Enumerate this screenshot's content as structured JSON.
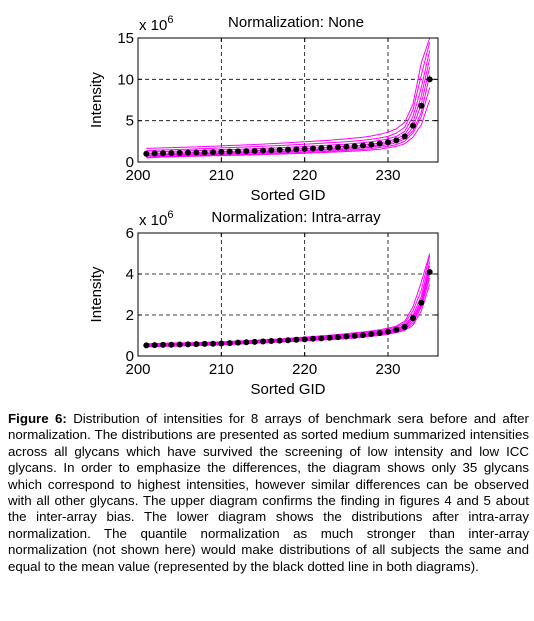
{
  "chart_data": [
    {
      "type": "line",
      "title": "Normalization: None",
      "xlabel": "Sorted GID",
      "ylabel": "Intensity",
      "y_multiplier": "x 10",
      "y_exponent": "6",
      "xlim": [
        200,
        236
      ],
      "ylim": [
        0,
        15
      ],
      "xticks": [
        "200",
        "210",
        "220",
        "230"
      ],
      "xtick_values": [
        200,
        210,
        220,
        230
      ],
      "yticks": [
        "0",
        "5",
        "10",
        "15"
      ],
      "ytick_values": [
        0,
        5,
        10,
        15
      ],
      "grid": true,
      "series_color": "#ff00ff",
      "mean_color": "#000000",
      "x": [
        201,
        202,
        203,
        204,
        205,
        206,
        207,
        208,
        209,
        210,
        211,
        212,
        213,
        214,
        215,
        216,
        217,
        218,
        219,
        220,
        221,
        222,
        223,
        224,
        225,
        226,
        227,
        228,
        229,
        230,
        231,
        232,
        233,
        234,
        235
      ],
      "series": [
        {
          "values": [
            0.5,
            0.55,
            0.6,
            0.62,
            0.65,
            0.68,
            0.7,
            0.72,
            0.75,
            0.78,
            0.8,
            0.82,
            0.85,
            0.88,
            0.9,
            0.93,
            0.96,
            1.0,
            1.03,
            1.06,
            1.1,
            1.14,
            1.18,
            1.22,
            1.27,
            1.32,
            1.38,
            1.45,
            1.55,
            1.7,
            1.9,
            2.2,
            3.0,
            4.5,
            7.5
          ]
        },
        {
          "values": [
            0.6,
            0.65,
            0.68,
            0.7,
            0.72,
            0.75,
            0.78,
            0.8,
            0.83,
            0.86,
            0.88,
            0.9,
            0.93,
            0.96,
            1.0,
            1.03,
            1.06,
            1.1,
            1.14,
            1.18,
            1.22,
            1.26,
            1.3,
            1.35,
            1.4,
            1.46,
            1.53,
            1.62,
            1.75,
            1.9,
            2.1,
            2.5,
            3.5,
            5.5,
            9.0
          ]
        },
        {
          "values": [
            0.75,
            0.78,
            0.8,
            0.82,
            0.85,
            0.88,
            0.9,
            0.92,
            0.95,
            0.98,
            1.0,
            1.03,
            1.06,
            1.1,
            1.13,
            1.16,
            1.2,
            1.24,
            1.28,
            1.32,
            1.36,
            1.4,
            1.45,
            1.5,
            1.56,
            1.62,
            1.7,
            1.8,
            1.95,
            2.1,
            2.35,
            2.8,
            3.8,
            6.0,
            10.5
          ]
        },
        {
          "values": [
            0.85,
            0.88,
            0.9,
            0.93,
            0.95,
            0.98,
            1.0,
            1.03,
            1.06,
            1.09,
            1.12,
            1.15,
            1.18,
            1.21,
            1.24,
            1.28,
            1.32,
            1.36,
            1.4,
            1.44,
            1.48,
            1.53,
            1.58,
            1.64,
            1.7,
            1.77,
            1.85,
            1.95,
            2.1,
            2.3,
            2.55,
            3.0,
            4.2,
            7.0,
            11.5
          ]
        },
        {
          "values": [
            1.0,
            1.03,
            1.06,
            1.08,
            1.1,
            1.13,
            1.16,
            1.19,
            1.22,
            1.25,
            1.28,
            1.31,
            1.34,
            1.38,
            1.42,
            1.46,
            1.5,
            1.54,
            1.58,
            1.62,
            1.67,
            1.72,
            1.78,
            1.84,
            1.9,
            1.97,
            2.05,
            2.15,
            2.3,
            2.5,
            2.8,
            3.3,
            4.8,
            8.0,
            12.5
          ]
        },
        {
          "values": [
            1.2,
            1.23,
            1.26,
            1.29,
            1.32,
            1.35,
            1.38,
            1.41,
            1.44,
            1.47,
            1.5,
            1.53,
            1.57,
            1.61,
            1.65,
            1.69,
            1.73,
            1.78,
            1.83,
            1.88,
            1.93,
            1.98,
            2.04,
            2.1,
            2.17,
            2.25,
            2.34,
            2.45,
            2.6,
            2.8,
            3.1,
            3.7,
            5.5,
            9.0,
            13.5
          ]
        },
        {
          "values": [
            1.4,
            1.43,
            1.46,
            1.49,
            1.52,
            1.55,
            1.58,
            1.62,
            1.66,
            1.7,
            1.74,
            1.78,
            1.82,
            1.86,
            1.9,
            1.95,
            2.0,
            2.05,
            2.1,
            2.15,
            2.2,
            2.26,
            2.32,
            2.39,
            2.46,
            2.54,
            2.63,
            2.75,
            2.9,
            3.1,
            3.5,
            4.2,
            6.3,
            10.5,
            14.5
          ]
        },
        {
          "values": [
            1.65,
            1.68,
            1.71,
            1.74,
            1.77,
            1.8,
            1.83,
            1.87,
            1.91,
            1.95,
            1.99,
            2.03,
            2.07,
            2.12,
            2.17,
            2.22,
            2.27,
            2.32,
            2.38,
            2.44,
            2.5,
            2.57,
            2.64,
            2.72,
            2.8,
            2.9,
            3.0,
            3.15,
            3.35,
            3.6,
            4.0,
            4.8,
            7.0,
            12.0,
            15.0
          ]
        }
      ],
      "mean": {
        "values": [
          1.0,
          1.04,
          1.06,
          1.08,
          1.1,
          1.13,
          1.15,
          1.17,
          1.2,
          1.23,
          1.26,
          1.29,
          1.32,
          1.35,
          1.39,
          1.42,
          1.46,
          1.5,
          1.54,
          1.58,
          1.63,
          1.68,
          1.73,
          1.78,
          1.84,
          1.91,
          1.99,
          2.09,
          2.22,
          2.38,
          2.62,
          3.1,
          4.4,
          6.8,
          10.0
        ]
      }
    },
    {
      "type": "line",
      "title": "Normalization: Intra-array",
      "xlabel": "Sorted GID",
      "ylabel": "Intensity",
      "y_multiplier": "x 10",
      "y_exponent": "6",
      "xlim": [
        200,
        236
      ],
      "ylim": [
        0,
        6
      ],
      "xticks": [
        "200",
        "210",
        "220",
        "230"
      ],
      "xtick_values": [
        200,
        210,
        220,
        230
      ],
      "yticks": [
        "0",
        "2",
        "4",
        "6"
      ],
      "ytick_values": [
        0,
        2,
        4,
        6
      ],
      "grid": true,
      "series_color": "#ff00ff",
      "mean_color": "#000000",
      "x": [
        201,
        202,
        203,
        204,
        205,
        206,
        207,
        208,
        209,
        210,
        211,
        212,
        213,
        214,
        215,
        216,
        217,
        218,
        219,
        220,
        221,
        222,
        223,
        224,
        225,
        226,
        227,
        228,
        229,
        230,
        231,
        232,
        233,
        234,
        235
      ],
      "series": [
        {
          "values": [
            0.45,
            0.46,
            0.47,
            0.48,
            0.49,
            0.5,
            0.51,
            0.52,
            0.53,
            0.54,
            0.56,
            0.58,
            0.6,
            0.62,
            0.64,
            0.66,
            0.68,
            0.7,
            0.72,
            0.74,
            0.76,
            0.78,
            0.8,
            0.82,
            0.85,
            0.88,
            0.92,
            0.96,
            1.0,
            1.06,
            1.14,
            1.25,
            1.5,
            2.2,
            3.5
          ]
        },
        {
          "values": [
            0.48,
            0.49,
            0.5,
            0.51,
            0.52,
            0.53,
            0.54,
            0.55,
            0.56,
            0.57,
            0.59,
            0.61,
            0.63,
            0.65,
            0.67,
            0.69,
            0.71,
            0.73,
            0.75,
            0.77,
            0.79,
            0.81,
            0.83,
            0.86,
            0.89,
            0.92,
            0.96,
            1.0,
            1.05,
            1.11,
            1.19,
            1.3,
            1.6,
            2.4,
            3.8
          ]
        },
        {
          "values": [
            0.5,
            0.51,
            0.52,
            0.53,
            0.54,
            0.55,
            0.56,
            0.57,
            0.58,
            0.59,
            0.61,
            0.63,
            0.65,
            0.67,
            0.69,
            0.71,
            0.73,
            0.75,
            0.77,
            0.79,
            0.81,
            0.83,
            0.86,
            0.89,
            0.92,
            0.95,
            0.99,
            1.03,
            1.08,
            1.15,
            1.23,
            1.35,
            1.7,
            2.5,
            4.0
          ]
        },
        {
          "values": [
            0.52,
            0.53,
            0.54,
            0.55,
            0.56,
            0.57,
            0.58,
            0.59,
            0.6,
            0.61,
            0.63,
            0.65,
            0.67,
            0.69,
            0.71,
            0.73,
            0.75,
            0.77,
            0.79,
            0.81,
            0.83,
            0.86,
            0.89,
            0.92,
            0.95,
            0.98,
            1.02,
            1.06,
            1.11,
            1.18,
            1.27,
            1.4,
            1.8,
            2.6,
            4.2
          ]
        },
        {
          "values": [
            0.53,
            0.54,
            0.55,
            0.56,
            0.57,
            0.58,
            0.59,
            0.6,
            0.61,
            0.62,
            0.64,
            0.66,
            0.68,
            0.7,
            0.72,
            0.74,
            0.76,
            0.78,
            0.8,
            0.82,
            0.85,
            0.88,
            0.91,
            0.94,
            0.97,
            1.0,
            1.04,
            1.09,
            1.14,
            1.21,
            1.3,
            1.45,
            1.9,
            2.7,
            4.4
          ]
        },
        {
          "values": [
            0.55,
            0.56,
            0.57,
            0.58,
            0.59,
            0.6,
            0.61,
            0.62,
            0.63,
            0.64,
            0.66,
            0.68,
            0.7,
            0.72,
            0.74,
            0.76,
            0.78,
            0.8,
            0.82,
            0.85,
            0.88,
            0.91,
            0.94,
            0.97,
            1.0,
            1.03,
            1.07,
            1.12,
            1.17,
            1.24,
            1.34,
            1.5,
            2.0,
            2.9,
            4.6
          ]
        },
        {
          "values": [
            0.57,
            0.58,
            0.59,
            0.6,
            0.61,
            0.62,
            0.63,
            0.64,
            0.65,
            0.66,
            0.68,
            0.7,
            0.72,
            0.74,
            0.76,
            0.78,
            0.8,
            0.83,
            0.86,
            0.89,
            0.92,
            0.95,
            0.98,
            1.01,
            1.04,
            1.08,
            1.12,
            1.17,
            1.22,
            1.3,
            1.4,
            1.6,
            2.2,
            3.2,
            4.9
          ]
        },
        {
          "values": [
            0.6,
            0.61,
            0.62,
            0.63,
            0.64,
            0.65,
            0.66,
            0.67,
            0.68,
            0.69,
            0.71,
            0.73,
            0.75,
            0.77,
            0.79,
            0.81,
            0.83,
            0.86,
            0.89,
            0.92,
            0.95,
            0.98,
            1.01,
            1.05,
            1.09,
            1.13,
            1.17,
            1.22,
            1.28,
            1.36,
            1.46,
            1.7,
            2.4,
            3.6,
            5.0
          ]
        }
      ],
      "mean": {
        "values": [
          0.52,
          0.53,
          0.54,
          0.55,
          0.56,
          0.57,
          0.58,
          0.59,
          0.6,
          0.61,
          0.63,
          0.65,
          0.67,
          0.69,
          0.71,
          0.73,
          0.75,
          0.77,
          0.79,
          0.81,
          0.84,
          0.86,
          0.89,
          0.92,
          0.95,
          0.98,
          1.02,
          1.07,
          1.12,
          1.19,
          1.28,
          1.42,
          1.85,
          2.6,
          4.1
        ]
      }
    }
  ],
  "caption": {
    "label": "Figure 6:",
    "text": " Distribution of intensities for 8 arrays of benchmark sera before and after normalization. The distributions are presented as sorted medium summarized intensities across all glycans which have survived the screening of low intensity and low ICC glycans. In order to emphasize the differences, the diagram shows only 35 glycans which correspond to highest intensities, however similar differences can be observed with all other glycans. The upper diagram confirms the finding in figures 4 and 5 about the inter-array bias. The lower diagram shows the distributions after intra-array normalization. The quantile normalization as much stronger than inter-array normalization (not shown here) would make distributions of all subjects the same and equal to the mean value (represented by the black dotted line in both diagrams)."
  }
}
